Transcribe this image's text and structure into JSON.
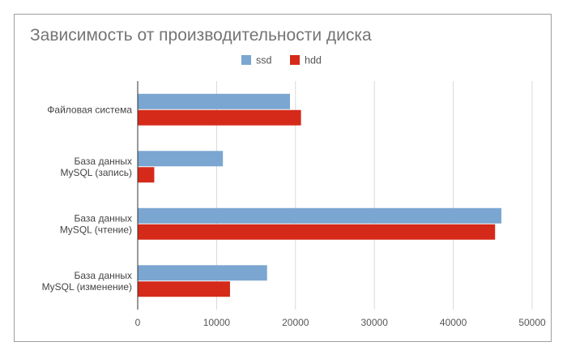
{
  "chart_data": {
    "type": "bar",
    "orientation": "horizontal",
    "title": "Зависимость от производительности диска",
    "categories": [
      [
        "Файловая система"
      ],
      [
        "База данных",
        "MySQL (запись)"
      ],
      [
        "База данных",
        "MySQL (чтение)"
      ],
      [
        "База данных",
        "MySQL (изменение)"
      ]
    ],
    "series": [
      {
        "name": "ssd",
        "color": "#7aa6d1",
        "values": [
          19300,
          10800,
          46100,
          16400
        ]
      },
      {
        "name": "hdd",
        "color": "#d52a1a",
        "values": [
          20700,
          2100,
          45300,
          11700
        ]
      }
    ],
    "xlim": [
      0,
      50000
    ],
    "xticks": [
      "0",
      "10000",
      "20000",
      "30000",
      "40000",
      "50000"
    ],
    "grid": true,
    "legend_position": "top"
  }
}
